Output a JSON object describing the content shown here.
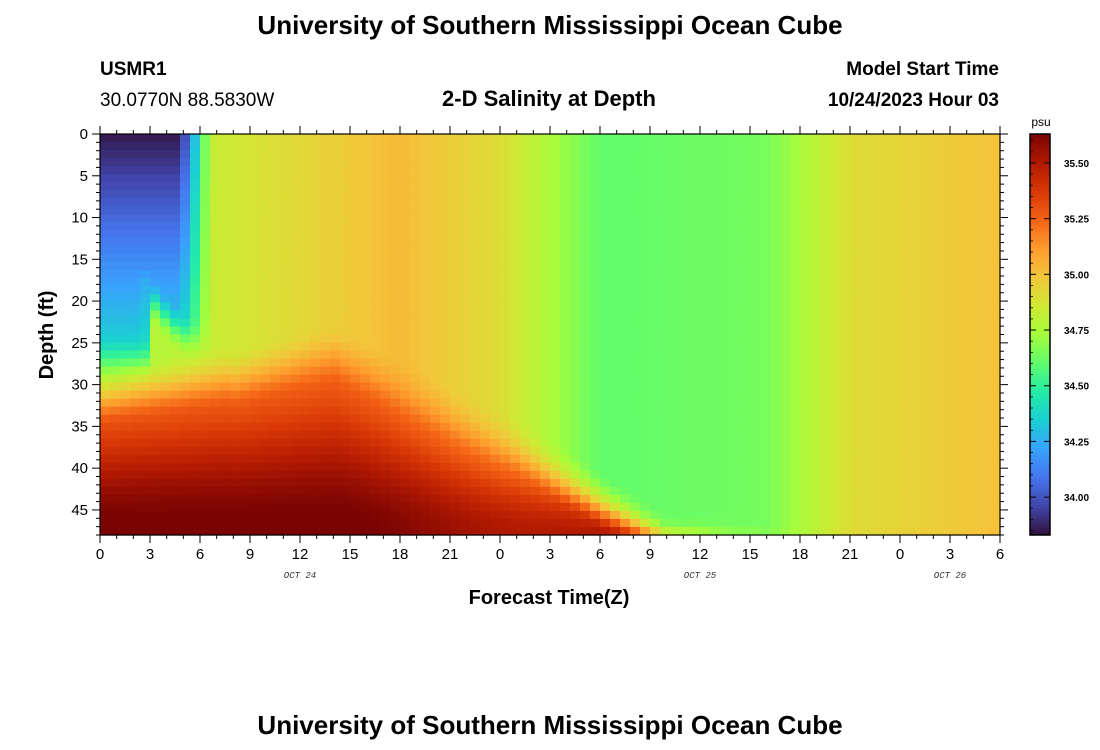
{
  "header": {
    "title": "University of Southern Mississippi Ocean Cube",
    "station": "USMR1",
    "location": "30.0770N  88.5830W",
    "subtitle": "2-D Salinity at Depth",
    "model_label": "Model Start Time",
    "model_time": "10/24/2023 Hour 03"
  },
  "footer": {
    "title": "University of Southern Mississippi Ocean Cube"
  },
  "chart_data": {
    "type": "heatmap",
    "title": "2-D Salinity at Depth",
    "xlabel": "Forecast Time(Z)",
    "ylabel": "Depth (ft)",
    "x_range_hours": [
      0,
      54
    ],
    "x_tick_labels": [
      "0",
      "3",
      "6",
      "9",
      "12",
      "15",
      "18",
      "21",
      "0",
      "3",
      "6",
      "9",
      "12",
      "15",
      "18",
      "21",
      "0",
      "3",
      "6"
    ],
    "date_labels": [
      {
        "label": "OCT 24",
        "at_hour": 12
      },
      {
        "label": "OCT 25",
        "at_hour": 36
      },
      {
        "label": "OCT 26",
        "at_hour": 51
      }
    ],
    "y_range": [
      0,
      48
    ],
    "y_ticks": [
      0,
      5,
      10,
      15,
      20,
      25,
      30,
      35,
      40,
      45
    ],
    "y_reversed": true,
    "colorbar": {
      "unit": "psu",
      "range": [
        33.83,
        35.63
      ],
      "ticks": [
        "34.00",
        "34.25",
        "34.50",
        "34.75",
        "35.00",
        "35.25",
        "35.50"
      ],
      "colors": [
        "#30123b",
        "#4145ab",
        "#4675ed",
        "#39a2fc",
        "#1bcfd4",
        "#24eca6",
        "#61fc6c",
        "#a4fc3b",
        "#d1e834",
        "#f3c63a",
        "#fe9b2d",
        "#f36315",
        "#d93806",
        "#b11901",
        "#7a0403"
      ]
    }
  }
}
